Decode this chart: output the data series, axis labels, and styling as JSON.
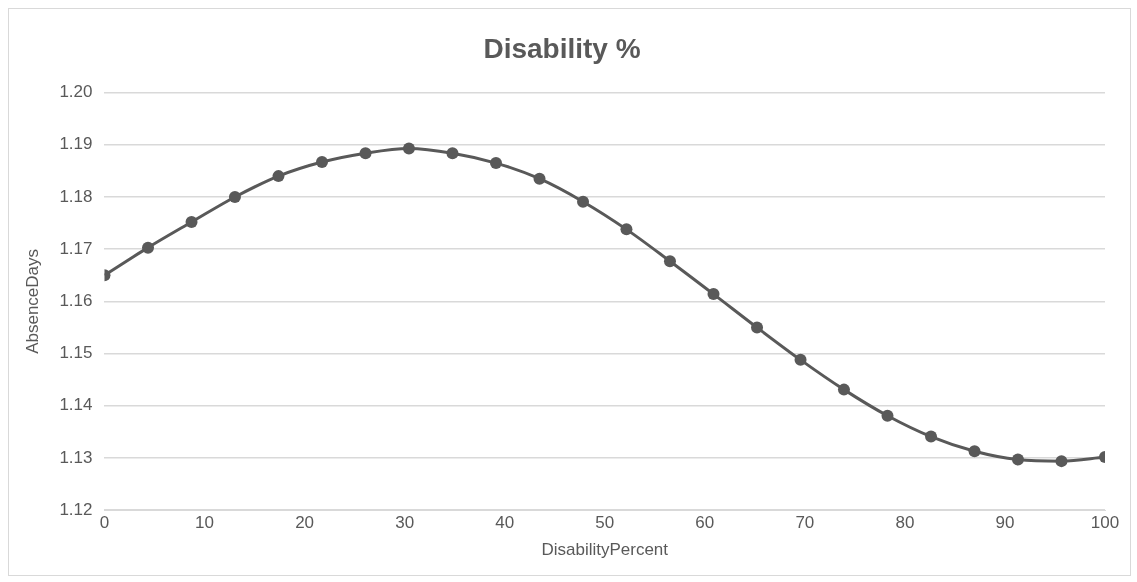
{
  "chart_data": {
    "type": "line",
    "title": "Disability %",
    "xlabel": "DisabilityPercent",
    "ylabel": "AbsenceDays",
    "x": [
      0,
      4.35,
      8.7,
      13.04,
      17.39,
      21.74,
      26.09,
      30.43,
      34.78,
      39.13,
      43.48,
      47.83,
      52.17,
      56.52,
      60.87,
      65.22,
      69.57,
      73.91,
      78.26,
      82.61,
      86.96,
      91.3,
      95.65,
      100
    ],
    "series": [
      {
        "color": "#595959",
        "values": [
          1.165,
          1.1703,
          1.1752,
          1.18,
          1.184,
          1.1867,
          1.1884,
          1.1893,
          1.1884,
          1.1865,
          1.1835,
          1.1791,
          1.1738,
          1.1677,
          1.1614,
          1.155,
          1.1488,
          1.1431,
          1.1381,
          1.1341,
          1.1313,
          1.1297,
          1.1294,
          1.1302
        ]
      }
    ],
    "xlim": [
      0,
      100
    ],
    "xticks": [
      0,
      10,
      20,
      30,
      40,
      50,
      60,
      70,
      80,
      90,
      100
    ],
    "ylim": [
      1.12,
      1.2
    ],
    "yticks": [
      {
        "value": 1.12,
        "label": "1.12"
      },
      {
        "value": 1.13,
        "label": "1.13"
      },
      {
        "value": 1.14,
        "label": "1.14"
      },
      {
        "value": 1.15,
        "label": "1.15"
      },
      {
        "value": 1.16,
        "label": "1.16"
      },
      {
        "value": 1.17,
        "label": "1.17"
      },
      {
        "value": 1.18,
        "label": "1.18"
      },
      {
        "value": 1.19,
        "label": "1.19"
      },
      {
        "value": 1.2,
        "label": "1.20"
      }
    ],
    "grid": "y",
    "legend": false,
    "marker": "circle",
    "line_style": "solid"
  }
}
